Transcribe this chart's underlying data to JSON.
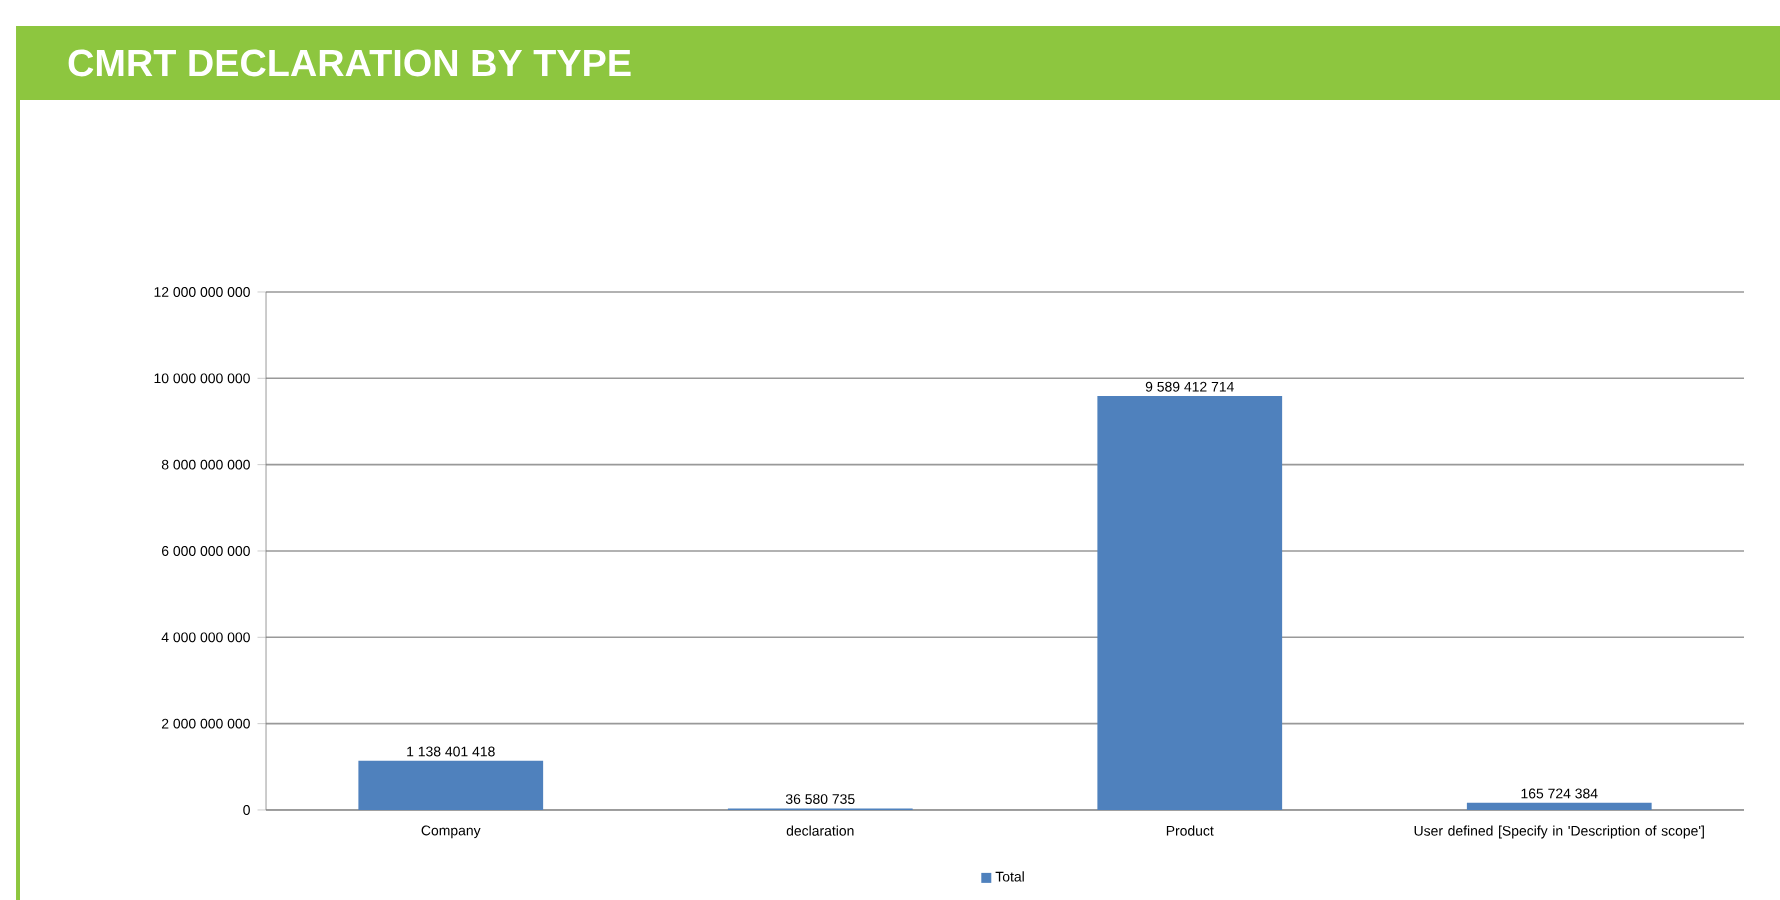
{
  "chart_data": {
    "type": "bar",
    "title": "CMRT DECLARATION BY TYPE",
    "categories": [
      "Company",
      "declaration",
      "Product",
      "User defined [Specify in 'Description of scope']"
    ],
    "series": [
      {
        "name": "Total",
        "color": "#4f81bd",
        "values": [
          1138401418,
          36580735,
          9589412714,
          165724384
        ],
        "value_labels": [
          "1 138 401 418",
          "36 580 735",
          "9 589 412 714",
          "165 724 384"
        ]
      }
    ],
    "ylim": [
      0,
      12000000000
    ],
    "yticks": [
      {
        "value": 0,
        "label": "0"
      },
      {
        "value": 2000000000,
        "label": "2 000 000 000"
      },
      {
        "value": 4000000000,
        "label": "4 000 000 000"
      },
      {
        "value": 6000000000,
        "label": "6 000 000 000"
      },
      {
        "value": 8000000000,
        "label": "8 000 000 000"
      },
      {
        "value": 10000000000,
        "label": "10 000 000 000"
      },
      {
        "value": 12000000000,
        "label": "12 000 000 000"
      }
    ],
    "grid": "y",
    "legend": "bottom"
  }
}
